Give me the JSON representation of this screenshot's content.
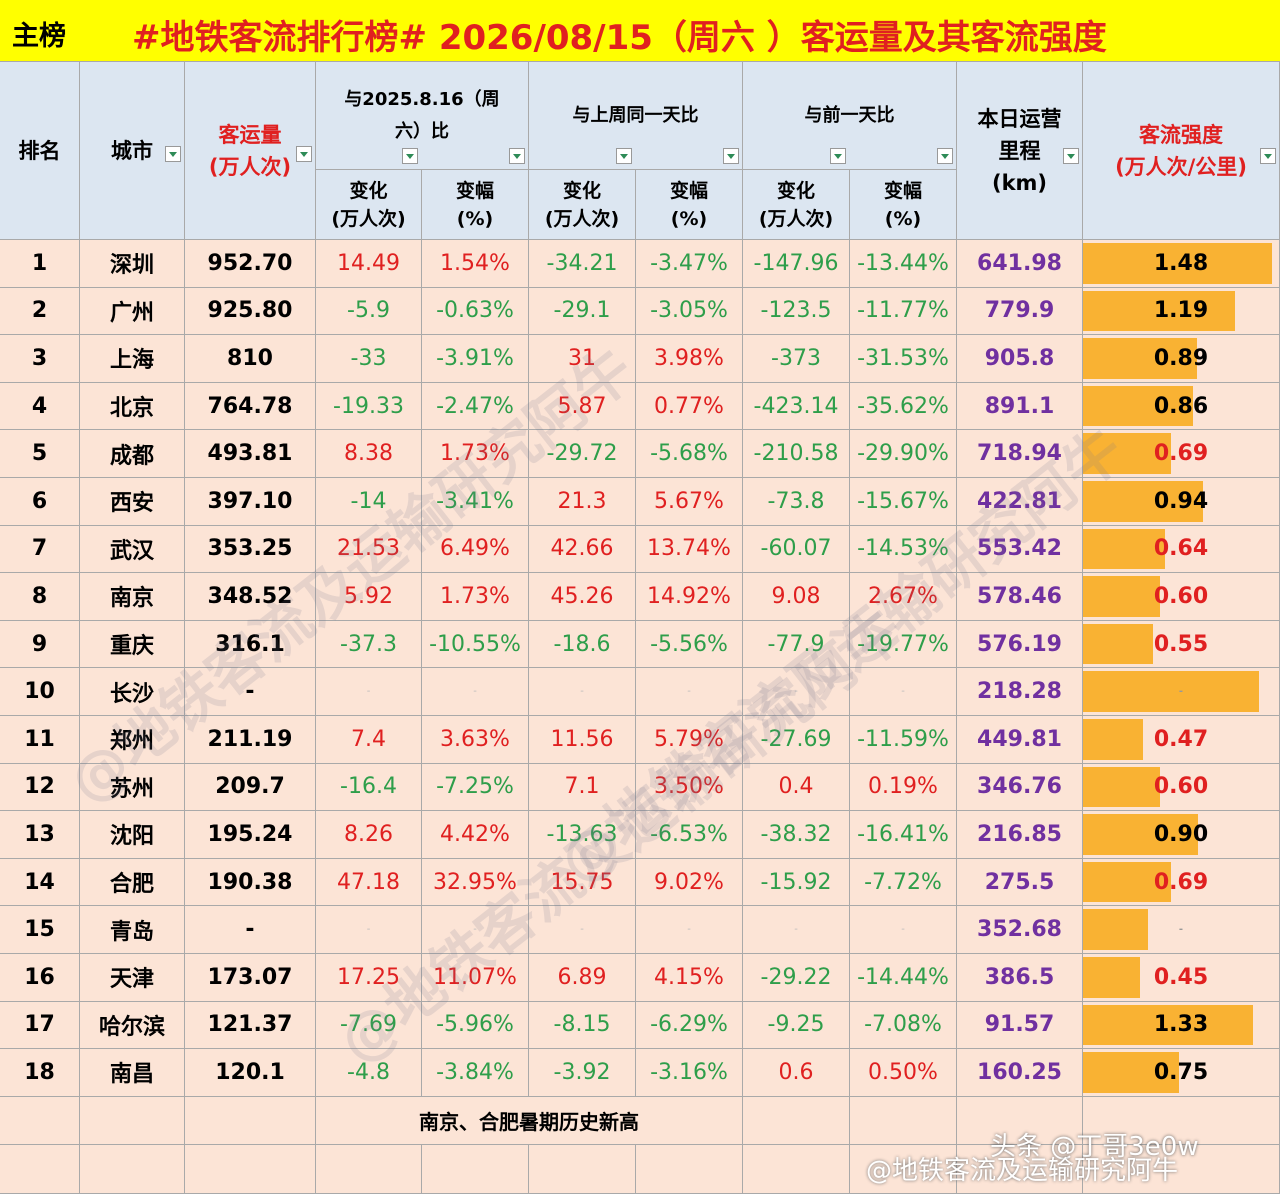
{
  "title_tag": "主榜",
  "title": "#地铁客流排行榜# 2026/08/15（周六 ）客运量及其客流强度",
  "header": {
    "rank": "排名",
    "city": "城市",
    "volume": [
      "客运量",
      "(万人次)"
    ],
    "groups": [
      "与2025.8.16（周六）比",
      "与上周同一天比",
      "与前一天比"
    ],
    "change": [
      "变化",
      "(万人次)"
    ],
    "pct": [
      "变幅",
      "(%)"
    ],
    "mileage": [
      "本日运营",
      "里程",
      "(km)"
    ],
    "intensity": [
      "客流强度",
      "(万人次/公里)"
    ]
  },
  "rows": [
    {
      "rank": 1,
      "city": "深圳",
      "volume": "952.70",
      "yoy_change": "14.49",
      "yoy_pct": "1.54%",
      "wow_change": "-34.21",
      "wow_pct": "-3.47%",
      "dod_change": "-147.96",
      "dod_pct": "-13.44%",
      "mileage": "641.98",
      "intensity": "1.48",
      "bar": 1.48,
      "intensity_color": "#000000"
    },
    {
      "rank": 2,
      "city": "广州",
      "volume": "925.80",
      "yoy_change": "-5.9",
      "yoy_pct": "-0.63%",
      "wow_change": "-29.1",
      "wow_pct": "-3.05%",
      "dod_change": "-123.5",
      "dod_pct": "-11.77%",
      "mileage": "779.9",
      "intensity": "1.19",
      "bar": 1.19,
      "intensity_color": "#000000"
    },
    {
      "rank": 3,
      "city": "上海",
      "volume": "810",
      "yoy_change": "-33",
      "yoy_pct": "-3.91%",
      "wow_change": "31",
      "wow_pct": "3.98%",
      "dod_change": "-373",
      "dod_pct": "-31.53%",
      "mileage": "905.8",
      "intensity": "0.89",
      "bar": 0.89,
      "intensity_color": "#000000"
    },
    {
      "rank": 4,
      "city": "北京",
      "volume": "764.78",
      "yoy_change": "-19.33",
      "yoy_pct": "-2.47%",
      "wow_change": "5.87",
      "wow_pct": "0.77%",
      "dod_change": "-423.14",
      "dod_pct": "-35.62%",
      "mileage": "891.1",
      "intensity": "0.86",
      "bar": 0.86,
      "intensity_color": "#000000"
    },
    {
      "rank": 5,
      "city": "成都",
      "volume": "493.81",
      "yoy_change": "8.38",
      "yoy_pct": "1.73%",
      "wow_change": "-29.72",
      "wow_pct": "-5.68%",
      "dod_change": "-210.58",
      "dod_pct": "-29.90%",
      "mileage": "718.94",
      "intensity": "0.69",
      "bar": 0.69,
      "intensity_color": "#e02020"
    },
    {
      "rank": 6,
      "city": "西安",
      "volume": "397.10",
      "yoy_change": "-14",
      "yoy_pct": "-3.41%",
      "wow_change": "21.3",
      "wow_pct": "5.67%",
      "dod_change": "-73.8",
      "dod_pct": "-15.67%",
      "mileage": "422.81",
      "intensity": "0.94",
      "bar": 0.94,
      "intensity_color": "#000000"
    },
    {
      "rank": 7,
      "city": "武汉",
      "volume": "353.25",
      "yoy_change": "21.53",
      "yoy_pct": "6.49%",
      "wow_change": "42.66",
      "wow_pct": "13.74%",
      "dod_change": "-60.07",
      "dod_pct": "-14.53%",
      "mileage": "553.42",
      "intensity": "0.64",
      "bar": 0.64,
      "intensity_color": "#e02020"
    },
    {
      "rank": 8,
      "city": "南京",
      "volume": "348.52",
      "yoy_change": "5.92",
      "yoy_pct": "1.73%",
      "wow_change": "45.26",
      "wow_pct": "14.92%",
      "dod_change": "9.08",
      "dod_pct": "2.67%",
      "mileage": "578.46",
      "intensity": "0.60",
      "bar": 0.6,
      "intensity_color": "#e02020"
    },
    {
      "rank": 9,
      "city": "重庆",
      "volume": "316.1",
      "yoy_change": "-37.3",
      "yoy_pct": "-10.55%",
      "wow_change": "-18.6",
      "wow_pct": "-5.56%",
      "dod_change": "-77.9",
      "dod_pct": "-19.77%",
      "mileage": "576.19",
      "intensity": "0.55",
      "bar": 0.55,
      "intensity_color": "#e02020"
    },
    {
      "rank": 10,
      "city": "长沙",
      "volume": "-",
      "yoy_change": "-",
      "yoy_pct": "-",
      "wow_change": "-",
      "wow_pct": "-",
      "dod_change": "-",
      "dod_pct": "-",
      "mileage": "218.28",
      "intensity": "-",
      "bar": 1.38,
      "intensity_color": "#999999"
    },
    {
      "rank": 11,
      "city": "郑州",
      "volume": "211.19",
      "yoy_change": "7.4",
      "yoy_pct": "3.63%",
      "wow_change": "11.56",
      "wow_pct": "5.79%",
      "dod_change": "-27.69",
      "dod_pct": "-11.59%",
      "mileage": "449.81",
      "intensity": "0.47",
      "bar": 0.47,
      "intensity_color": "#e02020"
    },
    {
      "rank": 12,
      "city": "苏州",
      "volume": "209.7",
      "yoy_change": "-16.4",
      "yoy_pct": "-7.25%",
      "wow_change": "7.1",
      "wow_pct": "3.50%",
      "dod_change": "0.4",
      "dod_pct": "0.19%",
      "mileage": "346.76",
      "intensity": "0.60",
      "bar": 0.6,
      "intensity_color": "#e02020"
    },
    {
      "rank": 13,
      "city": "沈阳",
      "volume": "195.24",
      "yoy_change": "8.26",
      "yoy_pct": "4.42%",
      "wow_change": "-13.63",
      "wow_pct": "-6.53%",
      "dod_change": "-38.32",
      "dod_pct": "-16.41%",
      "mileage": "216.85",
      "intensity": "0.90",
      "bar": 0.9,
      "intensity_color": "#000000"
    },
    {
      "rank": 14,
      "city": "合肥",
      "volume": "190.38",
      "yoy_change": "47.18",
      "yoy_pct": "32.95%",
      "wow_change": "15.75",
      "wow_pct": "9.02%",
      "dod_change": "-15.92",
      "dod_pct": "-7.72%",
      "mileage": "275.5",
      "intensity": "0.69",
      "bar": 0.69,
      "intensity_color": "#e02020"
    },
    {
      "rank": 15,
      "city": "青岛",
      "volume": "-",
      "yoy_change": "-",
      "yoy_pct": "-",
      "wow_change": "-",
      "wow_pct": "-",
      "dod_change": "-",
      "dod_pct": "-",
      "mileage": "352.68",
      "intensity": "-",
      "bar": 0.51,
      "intensity_color": "#999999"
    },
    {
      "rank": 16,
      "city": "天津",
      "volume": "173.07",
      "yoy_change": "17.25",
      "yoy_pct": "11.07%",
      "wow_change": "6.89",
      "wow_pct": "4.15%",
      "dod_change": "-29.22",
      "dod_pct": "-14.44%",
      "mileage": "386.5",
      "intensity": "0.45",
      "bar": 0.45,
      "intensity_color": "#e02020"
    },
    {
      "rank": 17,
      "city": "哈尔滨",
      "volume": "121.37",
      "yoy_change": "-7.69",
      "yoy_pct": "-5.96%",
      "wow_change": "-8.15",
      "wow_pct": "-6.29%",
      "dod_change": "-9.25",
      "dod_pct": "-7.08%",
      "mileage": "91.57",
      "intensity": "1.33",
      "bar": 1.33,
      "intensity_color": "#000000"
    },
    {
      "rank": 18,
      "city": "南昌",
      "volume": "120.1",
      "yoy_change": "-4.8",
      "yoy_pct": "-3.84%",
      "wow_change": "-3.92",
      "wow_pct": "-3.16%",
      "dod_change": "0.6",
      "dod_pct": "0.50%",
      "mileage": "160.25",
      "intensity": "0.75",
      "bar": 0.75,
      "intensity_color": "#000000"
    }
  ],
  "note": "南京、合肥暑期历史新高",
  "watermark": "@地铁客流及运输研究阿牛",
  "source": "头条 @丁哥3e0w"
}
